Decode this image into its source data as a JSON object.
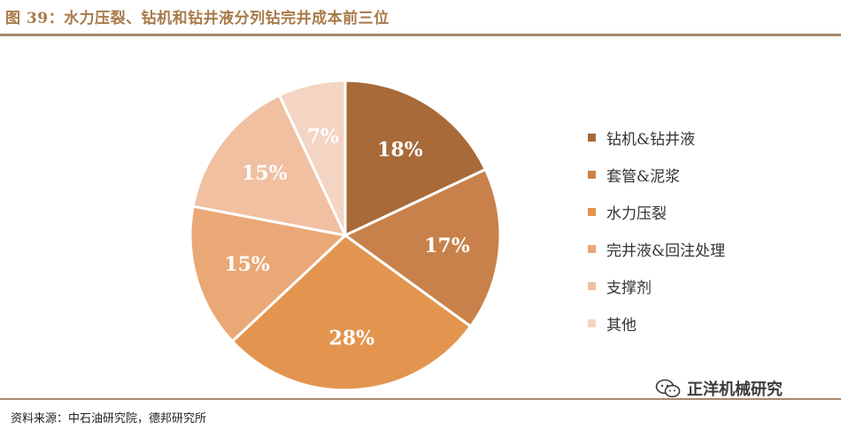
{
  "header": {
    "title": "图 39：水力压裂、钻机和钻井液分列钻完井成本前三位"
  },
  "chart_data": {
    "type": "pie",
    "title": "",
    "categories": [
      "钻机&钻井液",
      "套管&泥浆",
      "水力压裂",
      "完井液&回注处理",
      "支撑剂",
      "其他"
    ],
    "values": [
      18,
      17,
      28,
      15,
      15,
      7
    ],
    "value_labels": [
      "18%",
      "17%",
      "28%",
      "15%",
      "15%",
      "7%"
    ],
    "colors": [
      "#a86a38",
      "#c8814a",
      "#e3954f",
      "#eba877",
      "#f0c0a1",
      "#f4d4c3"
    ],
    "legend": "right",
    "start": "12 o'clock",
    "direction": "clockwise"
  },
  "footer": {
    "source": "资料来源：中石油研究院，德邦研究所"
  },
  "watermark": {
    "text": "正洋机械研究",
    "icon": "wechat-icon"
  }
}
